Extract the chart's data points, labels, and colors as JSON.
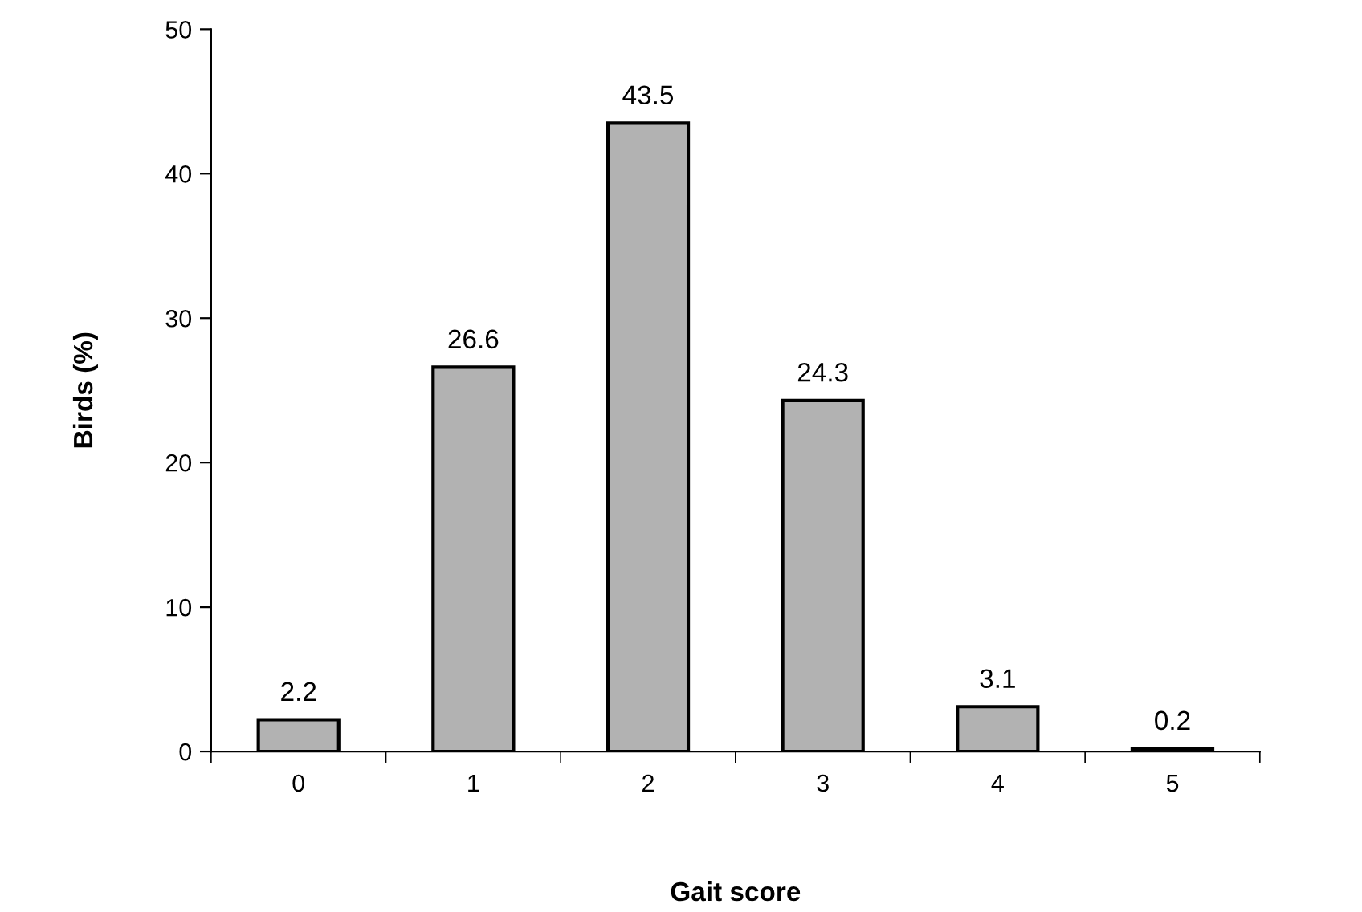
{
  "chart_data": {
    "type": "bar",
    "xlabel": "Gait score",
    "ylabel": "Birds (%)",
    "categories": [
      "0",
      "1",
      "2",
      "3",
      "4",
      "5"
    ],
    "values": [
      2.2,
      26.6,
      43.5,
      24.3,
      3.1,
      0.2
    ],
    "color": "#b2b2b2",
    "data_labels": true,
    "grid": false,
    "legend": false,
    "ylim": [
      0,
      50
    ],
    "yticks": [
      0,
      10,
      20,
      30,
      40,
      50
    ]
  }
}
